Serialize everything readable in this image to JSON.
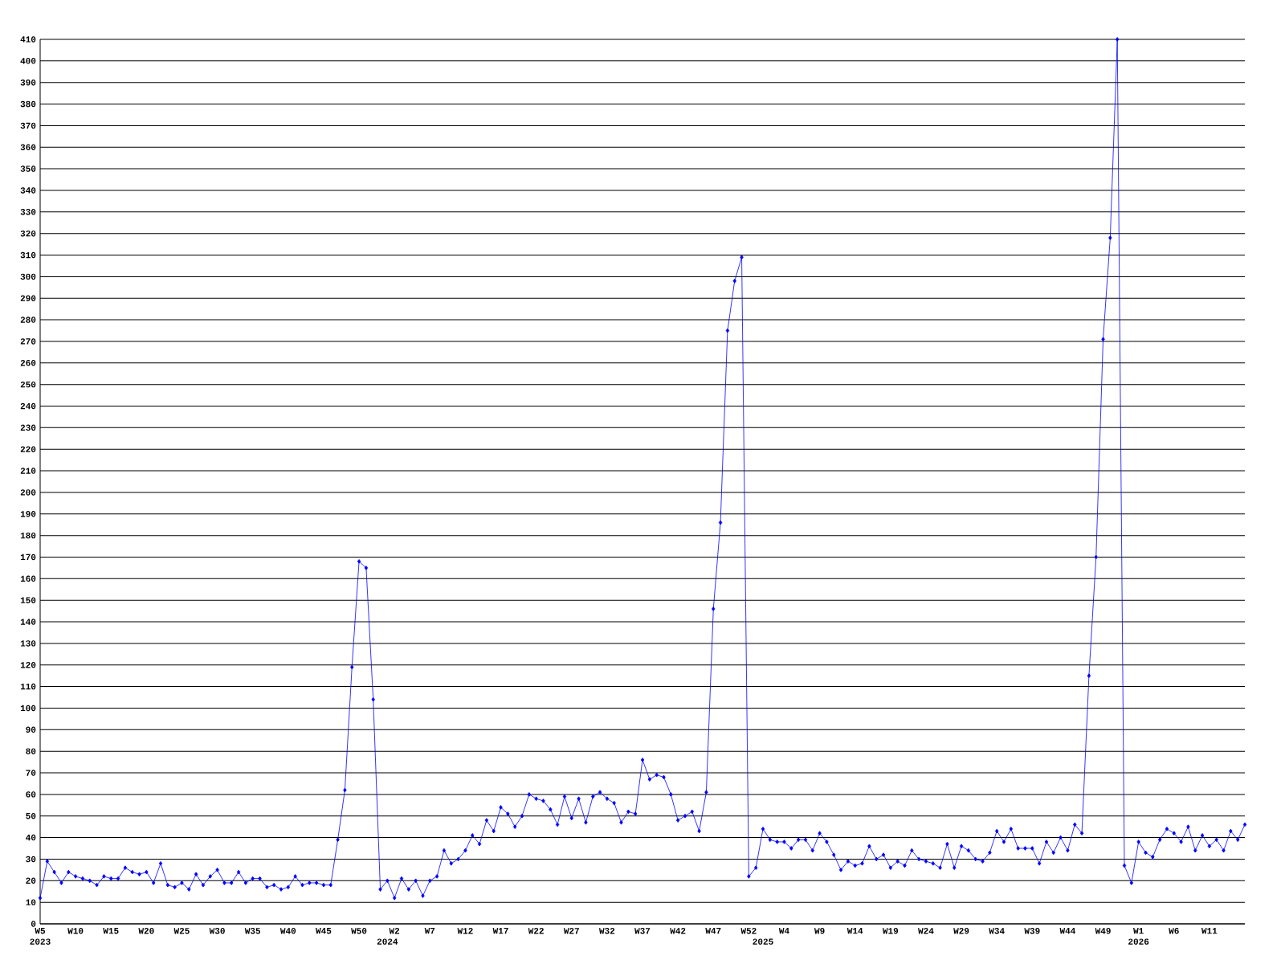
{
  "chart_data": {
    "type": "line",
    "x": [
      "2023-01-29",
      "2023-02-05",
      "2023-02-12",
      "2023-02-19",
      "2023-02-26",
      "2023-03-05",
      "2023-03-12",
      "2023-03-19",
      "2023-03-26",
      "2023-04-02",
      "2023-04-09",
      "2023-04-16",
      "2023-04-23",
      "2023-04-30",
      "2023-05-07",
      "2023-05-14",
      "2023-05-21",
      "2023-05-28",
      "2023-06-04",
      "2023-06-11",
      "2023-06-18",
      "2023-06-25",
      "2023-07-02",
      "2023-07-09",
      "2023-07-16",
      "2023-07-23",
      "2023-07-30",
      "2023-08-06",
      "2023-08-13",
      "2023-08-20",
      "2023-08-27",
      "2023-09-03",
      "2023-09-10",
      "2023-09-17",
      "2023-09-24",
      "2023-10-01",
      "2023-10-08",
      "2023-10-15",
      "2023-10-22",
      "2023-10-29",
      "2023-11-05",
      "2023-11-12",
      "2023-11-19",
      "2023-11-26",
      "2023-12-03",
      "2023-12-10",
      "2023-12-17",
      "2023-12-24",
      "2023-12-31",
      "2024-01-07",
      "2024-01-14",
      "2024-01-21",
      "2024-01-28",
      "2024-02-04",
      "2024-02-11",
      "2024-02-18",
      "2024-02-25",
      "2024-03-03",
      "2024-03-10",
      "2024-03-17",
      "2024-03-24",
      "2024-03-31",
      "2024-04-07",
      "2024-04-14",
      "2024-04-21",
      "2024-04-28",
      "2024-05-05",
      "2024-05-12",
      "2024-05-19",
      "2024-05-26",
      "2024-06-02",
      "2024-06-09",
      "2024-06-16",
      "2024-06-23",
      "2024-06-30",
      "2024-07-07",
      "2024-07-14",
      "2024-07-21",
      "2024-07-28",
      "2024-08-04",
      "2024-08-11",
      "2024-08-18",
      "2024-08-25",
      "2024-09-01",
      "2024-09-08",
      "2024-09-15",
      "2024-09-22",
      "2024-09-29",
      "2024-10-06",
      "2024-10-13",
      "2024-10-20",
      "2024-10-27",
      "2024-11-03",
      "2024-11-10",
      "2024-11-17",
      "2024-11-24",
      "2024-12-01",
      "2024-12-08",
      "2024-12-15",
      "2024-12-22",
      "2024-12-29",
      "2025-01-05",
      "2025-01-12",
      "2025-01-19",
      "2025-01-26",
      "2025-02-02",
      "2025-02-09",
      "2025-02-16",
      "2025-02-23",
      "2025-03-02",
      "2025-03-09",
      "2025-03-16",
      "2025-03-23",
      "2025-03-30",
      "2025-04-06",
      "2025-04-13",
      "2025-04-20",
      "2025-04-27",
      "2025-05-04",
      "2025-05-11",
      "2025-05-18",
      "2025-05-25",
      "2025-06-01",
      "2025-06-08",
      "2025-06-15",
      "2025-06-22",
      "2025-06-29",
      "2025-07-06",
      "2025-07-13",
      "2025-07-20",
      "2025-07-27",
      "2025-08-03",
      "2025-08-10",
      "2025-08-17",
      "2025-08-24",
      "2025-08-31",
      "2025-09-07",
      "2025-09-14",
      "2025-09-21",
      "2025-09-28",
      "2025-10-05",
      "2025-10-12",
      "2025-10-19",
      "2025-10-26",
      "2025-11-02",
      "2025-11-09",
      "2025-11-16",
      "2025-11-23",
      "2025-11-30",
      "2025-12-07",
      "2025-12-14",
      "2025-12-21",
      "2025-12-28",
      "2026-01-04",
      "2026-01-11",
      "2026-01-18",
      "2026-01-25",
      "2026-02-01",
      "2026-02-08",
      "2026-02-15",
      "2026-02-22",
      "2026-03-01",
      "2026-03-08",
      "2026-03-15",
      "2026-03-22",
      "2026-03-29",
      "2026-04-05",
      "2026-04-12",
      "2026-04-19",
      "2026-04-26",
      "2026-05-03"
    ],
    "values": [
      12,
      29,
      24,
      19,
      24,
      22,
      21,
      20,
      18,
      22,
      21,
      21,
      26,
      24,
      23,
      24,
      19,
      28,
      18,
      17,
      19,
      16,
      23,
      18,
      22,
      25,
      19,
      19,
      24,
      19,
      21,
      21,
      17,
      18,
      16,
      17,
      22,
      18,
      19,
      19,
      18,
      18,
      39,
      62,
      119,
      168,
      165,
      104,
      16,
      20,
      12,
      21,
      16,
      20,
      13,
      20,
      22,
      34,
      28,
      30,
      34,
      41,
      37,
      48,
      43,
      54,
      51,
      45,
      50,
      60,
      58,
      57,
      53,
      46,
      59,
      49,
      58,
      47,
      59,
      61,
      58,
      56,
      47,
      52,
      51,
      76,
      67,
      69,
      68,
      60,
      48,
      50,
      52,
      43,
      61,
      146,
      186,
      275,
      298,
      309,
      22,
      26,
      44,
      39,
      38,
      38,
      35,
      39,
      39,
      34,
      42,
      38,
      32,
      25,
      29,
      27,
      28,
      36,
      30,
      32,
      26,
      29,
      27,
      34,
      30,
      29,
      28,
      26,
      37,
      26,
      36,
      34,
      30,
      29,
      33,
      43,
      38,
      44,
      35,
      35,
      35,
      28,
      38,
      33,
      40,
      34,
      46,
      42,
      115,
      170,
      271,
      318,
      410,
      27,
      19,
      38,
      33,
      31,
      39,
      44,
      42,
      38,
      45,
      34,
      41,
      36,
      39,
      34,
      43,
      39,
      46
    ],
    "color": "#0000ff",
    "marker": "diamond",
    "grid": "y",
    "xlim": [
      "2023-01-29",
      "2026-05-03"
    ],
    "xticks": [
      {
        "value": "2023-01-29",
        "label": "W5"
      },
      {
        "value": "2023-03-05",
        "label": "W10"
      },
      {
        "value": "2023-04-09",
        "label": "W15"
      },
      {
        "value": "2023-05-14",
        "label": "W20"
      },
      {
        "value": "2023-06-18",
        "label": "W25"
      },
      {
        "value": "2023-07-23",
        "label": "W30"
      },
      {
        "value": "2023-08-27",
        "label": "W35"
      },
      {
        "value": "2023-10-01",
        "label": "W40"
      },
      {
        "value": "2023-11-05",
        "label": "W45"
      },
      {
        "value": "2023-12-10",
        "label": "W50"
      },
      {
        "value": "2024-01-14",
        "label": "W2"
      },
      {
        "value": "2024-02-18",
        "label": "W7"
      },
      {
        "value": "2024-03-24",
        "label": "W12"
      },
      {
        "value": "2024-04-28",
        "label": "W17"
      },
      {
        "value": "2024-06-02",
        "label": "W22"
      },
      {
        "value": "2024-07-07",
        "label": "W27"
      },
      {
        "value": "2024-08-11",
        "label": "W32"
      },
      {
        "value": "2024-09-15",
        "label": "W37"
      },
      {
        "value": "2024-10-20",
        "label": "W42"
      },
      {
        "value": "2024-11-24",
        "label": "W47"
      },
      {
        "value": "2024-12-29",
        "label": "W52"
      },
      {
        "value": "2025-02-02",
        "label": "W4"
      },
      {
        "value": "2025-03-09",
        "label": "W9"
      },
      {
        "value": "2025-04-13",
        "label": "W14"
      },
      {
        "value": "2025-05-18",
        "label": "W19"
      },
      {
        "value": "2025-06-22",
        "label": "W24"
      },
      {
        "value": "2025-07-27",
        "label": "W29"
      },
      {
        "value": "2025-08-31",
        "label": "W34"
      },
      {
        "value": "2025-10-05",
        "label": "W39"
      },
      {
        "value": "2025-11-09",
        "label": "W44"
      },
      {
        "value": "2025-12-14",
        "label": "W49"
      },
      {
        "value": "2026-01-18",
        "label": "W1"
      },
      {
        "value": "2026-02-22",
        "label": "W6"
      },
      {
        "value": "2026-03-29",
        "label": "W11"
      }
    ],
    "ylim": [
      0,
      410
    ],
    "yticks": [
      0,
      10,
      20,
      30,
      40,
      50,
      60,
      70,
      80,
      90,
      100,
      110,
      120,
      130,
      140,
      150,
      160,
      170,
      180,
      190,
      200,
      210,
      220,
      230,
      240,
      250,
      260,
      270,
      280,
      290,
      300,
      310,
      320,
      330,
      340,
      350,
      360,
      370,
      380,
      390,
      400,
      410
    ],
    "x2lim": [
      "2023-01-29",
      "2026-05-03"
    ],
    "x2ticks": [
      {
        "value": "2023-01-29",
        "label": "2023"
      },
      {
        "value": "2024-01-07",
        "label": "2024"
      },
      {
        "value": "2025-01-12",
        "label": "2025"
      },
      {
        "value": "2026-01-18",
        "label": "2026"
      }
    ]
  }
}
